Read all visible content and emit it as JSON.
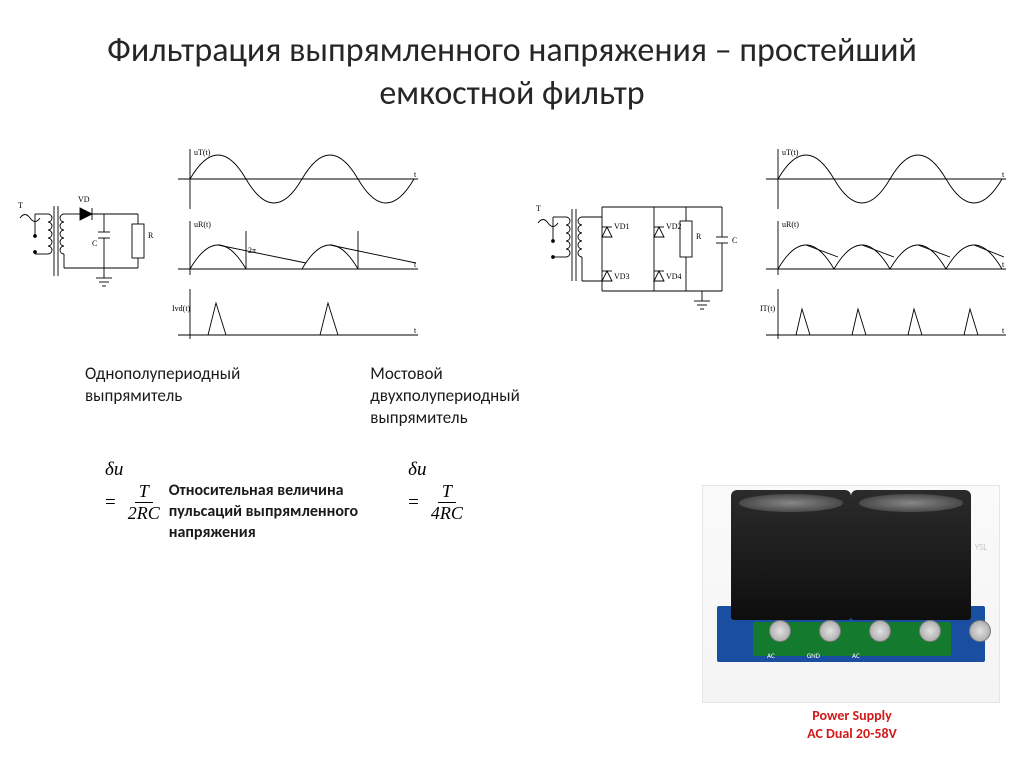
{
  "title": "Фильтрация выпрямленного напряжения – простейший емкостной фильтр",
  "labels": {
    "halfwave": "Однополупериодный\nвыпрямитель",
    "bridge": "Мостовой\nдвухполупериодный\nвыпрямитель"
  },
  "formulas": {
    "half": {
      "deltaU": "δu",
      "eq": "=",
      "num": "T",
      "den": "2RC"
    },
    "full": {
      "deltaU": "δu",
      "eq": "=",
      "num": "T",
      "den": "4RC"
    },
    "pulsation": "Относительная величина\nпульсаций выпрямленного\nнапряжения"
  },
  "circuit1": {
    "labels": {
      "T": "T",
      "VD": "VD",
      "C": "C",
      "R": "R"
    }
  },
  "circuit2": {
    "labels": {
      "T": "T",
      "VD1": "VD1",
      "VD2": "VD2",
      "VD3": "VD3",
      "VD4": "VD4",
      "R": "R",
      "C": "C"
    }
  },
  "waves1": {
    "labels": {
      "ut": "uT(t)",
      "ur": "uR(t)",
      "ivd": "Ivd(t)",
      "t": "t",
      "tau": "2π"
    }
  },
  "waves2": {
    "labels": {
      "ut": "uT(t)",
      "ur": "uR(t)",
      "it": "IT(t)",
      "t": "t"
    }
  },
  "photo": {
    "watermark": "YSL",
    "pcb_text": [
      "AC",
      "GND",
      "AC"
    ],
    "caption1": "Power Supply",
    "caption2": "AC Dual 20-58V",
    "colors": {
      "pcb": "#1a4ea0",
      "terminal": "#147a2e",
      "caption": "#d11919"
    }
  },
  "style": {
    "bg": "#ffffff",
    "text": "#000000",
    "title_fontsize": 34,
    "body_fontsize": 17,
    "stroke": "#000000",
    "stroke_width": 0.9
  }
}
